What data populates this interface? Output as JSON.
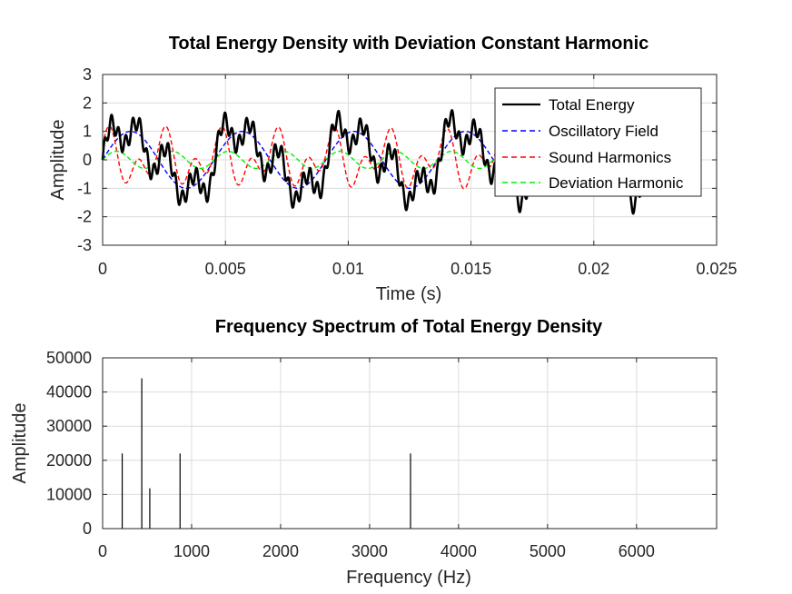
{
  "chart_data": [
    {
      "type": "line",
      "title": "Total Energy Density with Deviation Constant Harmonic",
      "xlabel": "Time (s)",
      "ylabel": "Amplitude",
      "xlim": [
        0,
        0.025
      ],
      "ylim": [
        -3,
        3
      ],
      "xticks": [
        "0",
        "0.005",
        "0.01",
        "0.015",
        "0.02",
        "0.025"
      ],
      "yticks": [
        "-3",
        "-2",
        "-1",
        "0",
        "1",
        "2",
        "3"
      ],
      "grid": true,
      "legend_position": "top-right",
      "series": [
        {
          "name": "Total Energy",
          "color": "#000000",
          "style": "solid",
          "components": [
            {
              "amp": 1.0,
              "freq": 220
            },
            {
              "amp": 0.6,
              "freq": 870
            },
            {
              "amp": 0.3,
              "freq": 440
            },
            {
              "amp": 0.3,
              "freq": 3460
            }
          ],
          "x_end": 0.0227
        },
        {
          "name": "Oscillatory Field",
          "color": "#0000ff",
          "style": "dashed",
          "components": [
            {
              "amp": 1.0,
              "freq": 220
            }
          ],
          "x_end": 0.0227
        },
        {
          "name": "Sound Harmonics",
          "color": "#ff0000",
          "style": "dashed",
          "components": [
            {
              "amp": 0.6,
              "freq": 870
            },
            {
              "amp": 0.6,
              "freq": 440,
              "phase": 1.0
            }
          ],
          "x_end": 0.0227
        },
        {
          "name": "Deviation Harmonic",
          "color": "#00ee00",
          "style": "dashed",
          "components": [
            {
              "amp": 0.3,
              "freq": 440
            }
          ],
          "x_end": 0.0227
        }
      ]
    },
    {
      "type": "bar",
      "title": "Frequency Spectrum of Total Energy Density",
      "xlabel": "Frequency (Hz)",
      "ylabel": "Amplitude",
      "xlim": [
        0,
        6900
      ],
      "ylim": [
        0,
        50000
      ],
      "xticks": [
        "0",
        "1000",
        "2000",
        "3000",
        "4000",
        "5000",
        "6000"
      ],
      "yticks": [
        "0",
        "10000",
        "20000",
        "30000",
        "40000",
        "50000"
      ],
      "grid": true,
      "color": "#000000",
      "x": [
        220,
        440,
        530,
        870,
        3460
      ],
      "values": [
        22000,
        44000,
        11800,
        22000,
        22000
      ]
    }
  ]
}
